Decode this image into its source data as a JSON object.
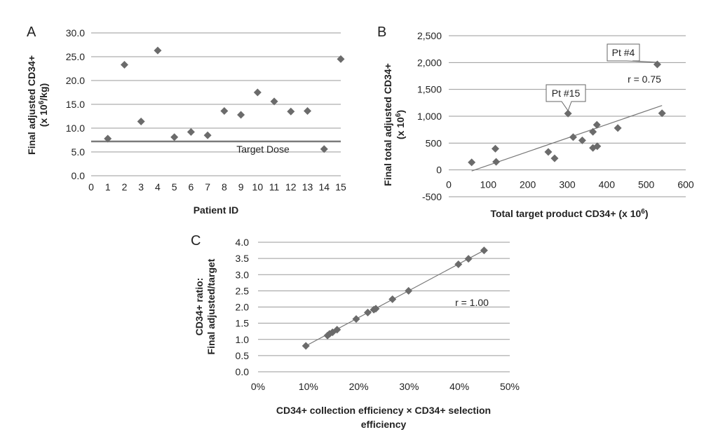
{
  "chart_data": [
    {
      "panel": "A",
      "type": "scatter",
      "ylabel_lines": [
        "Final adjusted CD34+",
        "(x 10",
        "6",
        "/kg)"
      ],
      "xlabel": "Patient ID",
      "xlim": [
        0,
        15
      ],
      "ylim": [
        0,
        30
      ],
      "x_ticks": [
        0,
        1,
        2,
        3,
        4,
        5,
        6,
        7,
        8,
        9,
        10,
        11,
        12,
        13,
        14,
        15
      ],
      "y_ticks": [
        "0.0",
        "5.0",
        "10.0",
        "15.0",
        "20.0",
        "25.0",
        "30.0"
      ],
      "grid": true,
      "points": [
        {
          "x": 1,
          "y": 7.8
        },
        {
          "x": 2,
          "y": 23.3
        },
        {
          "x": 3,
          "y": 11.4
        },
        {
          "x": 4,
          "y": 26.3
        },
        {
          "x": 5,
          "y": 8.1
        },
        {
          "x": 6,
          "y": 9.2
        },
        {
          "x": 7,
          "y": 8.5
        },
        {
          "x": 8,
          "y": 13.6
        },
        {
          "x": 9,
          "y": 12.8
        },
        {
          "x": 10,
          "y": 17.5
        },
        {
          "x": 11,
          "y": 15.6
        },
        {
          "x": 12,
          "y": 13.5
        },
        {
          "x": 13,
          "y": 13.6
        },
        {
          "x": 14,
          "y": 5.6
        },
        {
          "x": 15,
          "y": 24.5
        }
      ],
      "reference_line": {
        "y": 7.2,
        "label": "Target Dose"
      }
    },
    {
      "panel": "B",
      "type": "scatter",
      "ylabel_lines": [
        "Final total adjusted CD34+",
        "(x 10",
        "6",
        ")"
      ],
      "xlabel_parts": [
        "Total target product CD34+ (x 10",
        "6",
        ")"
      ],
      "xlim": [
        0,
        600
      ],
      "ylim": [
        -500,
        2500
      ],
      "x_ticks": [
        "0",
        "100",
        "200",
        "300",
        "400",
        "500",
        "600"
      ],
      "y_ticks": [
        "-500",
        "0",
        "500",
        "1,000",
        "1,500",
        "2,000",
        "2,500"
      ],
      "grid": true,
      "points": [
        {
          "x": 58,
          "y": 140
        },
        {
          "x": 118,
          "y": 395
        },
        {
          "x": 120,
          "y": 150
        },
        {
          "x": 252,
          "y": 335
        },
        {
          "x": 268,
          "y": 215
        },
        {
          "x": 302,
          "y": 1050
        },
        {
          "x": 315,
          "y": 610
        },
        {
          "x": 338,
          "y": 550
        },
        {
          "x": 365,
          "y": 410
        },
        {
          "x": 365,
          "y": 710
        },
        {
          "x": 375,
          "y": 840
        },
        {
          "x": 376,
          "y": 440
        },
        {
          "x": 428,
          "y": 780
        },
        {
          "x": 528,
          "y": 1965
        },
        {
          "x": 540,
          "y": 1055
        }
      ],
      "trendline": {
        "x1": 58,
        "y1": -20,
        "x2": 540,
        "y2": 1200
      },
      "annotations": [
        {
          "text": "Pt #4",
          "x": 528,
          "y": 1965
        },
        {
          "text": "Pt #15",
          "x": 302,
          "y": 1050
        }
      ],
      "r_label": "r = 0.75"
    },
    {
      "panel": "C",
      "type": "scatter",
      "ylabel_lines": [
        "CD34+ ratio:",
        "Final adjusted/target"
      ],
      "xlabel_lines": [
        "CD34+ collection efficiency × CD34+ selection",
        "efficiency"
      ],
      "xlim": [
        0,
        50
      ],
      "ylim": [
        0,
        4
      ],
      "x_ticks": [
        "0%",
        "10%",
        "20%",
        "30%",
        "40%",
        "50%"
      ],
      "y_ticks": [
        "0.0",
        "0.5",
        "1.0",
        "1.5",
        "2.0",
        "2.5",
        "3.0",
        "3.5",
        "4.0"
      ],
      "grid": true,
      "points": [
        {
          "x": 9.5,
          "y": 0.8
        },
        {
          "x": 13.8,
          "y": 1.12
        },
        {
          "x": 14.2,
          "y": 1.17
        },
        {
          "x": 14.8,
          "y": 1.22
        },
        {
          "x": 15.7,
          "y": 1.3
        },
        {
          "x": 19.5,
          "y": 1.63
        },
        {
          "x": 21.8,
          "y": 1.83
        },
        {
          "x": 23.0,
          "y": 1.92
        },
        {
          "x": 23.4,
          "y": 1.95
        },
        {
          "x": 26.7,
          "y": 2.24
        },
        {
          "x": 29.9,
          "y": 2.5
        },
        {
          "x": 39.8,
          "y": 3.32
        },
        {
          "x": 41.8,
          "y": 3.49
        },
        {
          "x": 44.9,
          "y": 3.75
        }
      ],
      "trendline": {
        "x1": 9.5,
        "y1": 0.8,
        "x2": 44.9,
        "y2": 3.75
      },
      "r_label": "r = 1.00"
    }
  ]
}
